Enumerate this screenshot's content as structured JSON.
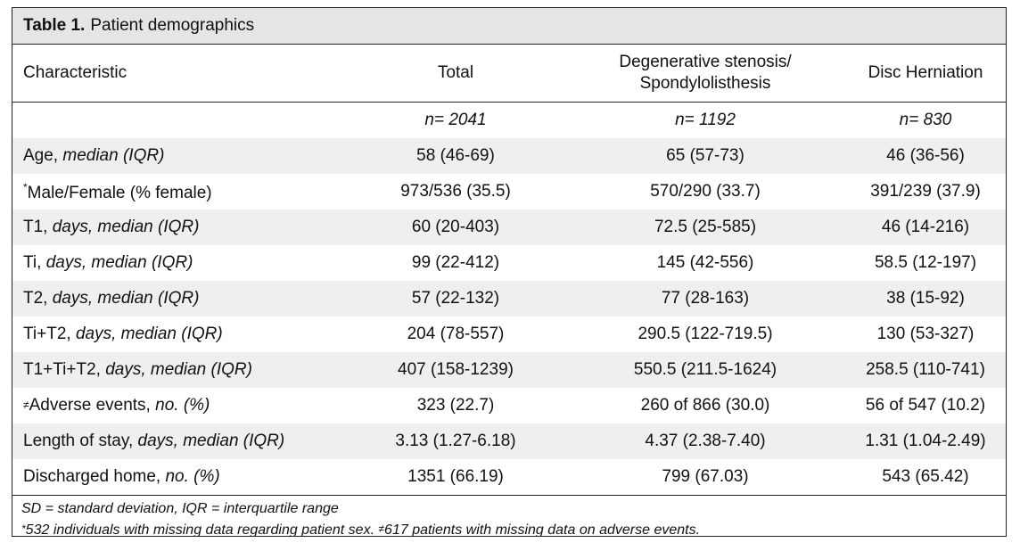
{
  "table": {
    "title_bold": "Table 1.",
    "title_rest": "Patient demographics",
    "headers": {
      "characteristic": "Characteristic",
      "total": "Total",
      "degenerative_line1": "Degenerative stenosis/",
      "degenerative_line2": "Spondylolisthesis",
      "disc": "Disc Herniation"
    },
    "n_row": [
      "n= 2041",
      "n= 1192",
      "n= 830"
    ],
    "rows": [
      {
        "label": "Age, ",
        "label_em": "median (IQR)",
        "values": [
          "58 (46-69)",
          "65 (57-73)",
          "46 (36-56)"
        ]
      },
      {
        "mark": "*",
        "label": "Male/Female (% female)",
        "label_em": "",
        "values": [
          "973/536 (35.5)",
          "570/290 (33.7)",
          "391/239 (37.9)"
        ]
      },
      {
        "label": "T1, ",
        "label_em": "days, median (IQR)",
        "values": [
          "60 (20-403)",
          "72.5 (25-585)",
          "46 (14-216)"
        ]
      },
      {
        "label": "Ti, ",
        "label_em": "days, median (IQR)",
        "values": [
          "99 (22-412)",
          "145 (42-556)",
          "58.5 (12-197)"
        ]
      },
      {
        "label": "T2, ",
        "label_em": "days, median (IQR)",
        "values": [
          "57 (22-132)",
          "77 (28-163)",
          "38 (15-92)"
        ]
      },
      {
        "label": "Ti+T2, ",
        "label_em": "days, median (IQR)",
        "values": [
          "204 (78-557)",
          "290.5 (122-719.5)",
          "130 (53-327)"
        ]
      },
      {
        "label": "T1+Ti+T2, ",
        "label_em": "days, median (IQR)",
        "values": [
          "407 (158-1239)",
          "550.5 (211.5-1624)",
          "258.5 (110-741)"
        ]
      },
      {
        "mark": "≠",
        "label": "Adverse events, ",
        "label_em": "no. (%)",
        "values": [
          "323 (22.7)",
          "260 of 866  (30.0)",
          "56 of 547 (10.2)"
        ]
      },
      {
        "label": "Length of stay, ",
        "label_em": "days, median (IQR)",
        "values": [
          "3.13 (1.27-6.18)",
          "4.37 (2.38-7.40)",
          "1.31 (1.04-2.49)"
        ]
      },
      {
        "label": "Discharged home, ",
        "label_em": "no. (%)",
        "values": [
          "1351 (66.19)",
          "799 (67.03)",
          "543 (65.42)"
        ]
      }
    ],
    "footnote1": "SD = standard deviation, IQR = interquartile range",
    "footnote2_mark1": "*",
    "footnote2_a": "532 individuals with missing data regarding patient sex. ",
    "footnote2_mark2": "≠",
    "footnote2_b": "617 patients with missing data on adverse events."
  }
}
